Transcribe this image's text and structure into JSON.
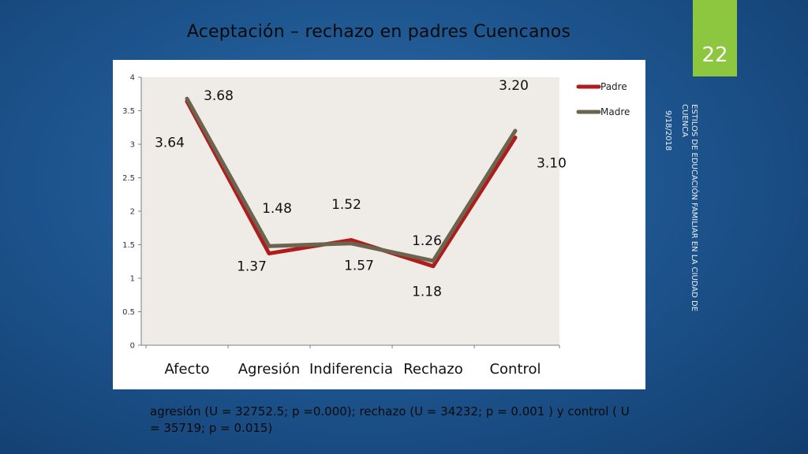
{
  "slide": {
    "title": "Aceptación – rechazo en padres Cuencanos",
    "number": "22",
    "date": "9/18/2018",
    "footer": "ESTILOS DE EDUCACIÓN FAMILIAR EN LA CIUDAD DE CUENCA",
    "caption": "agresión (U = 32752.5; p =0.000); rechazo (U = 34232; p = 0.001 ) y control ( U = 35719; p = 0.015)",
    "accent_color": "#8dc63f"
  },
  "chart_data": {
    "type": "line",
    "categories": [
      "Afecto",
      "Agresión",
      "Indiferencia",
      "Rechazo",
      "Control"
    ],
    "series": [
      {
        "name": "Padre",
        "values": [
          3.64,
          1.37,
          1.57,
          1.18,
          3.1
        ],
        "color": "#b01c1c",
        "labels": [
          "3.64",
          "1.37",
          "1.57",
          "1.18",
          "3.10"
        ]
      },
      {
        "name": "Madre",
        "values": [
          3.68,
          1.48,
          1.52,
          1.26,
          3.2
        ],
        "color": "#6b6550",
        "labels": [
          "3.68",
          "1.48",
          "1.52",
          "1.26",
          "3.20"
        ]
      }
    ],
    "yticks": [
      "0",
      "0.5",
      "1",
      "1.5",
      "2",
      "2.5",
      "3",
      "3.5",
      "4"
    ],
    "ylim": [
      0,
      4
    ],
    "plot_background": "#efebe7",
    "grid": false,
    "legend_position": "top-right"
  }
}
